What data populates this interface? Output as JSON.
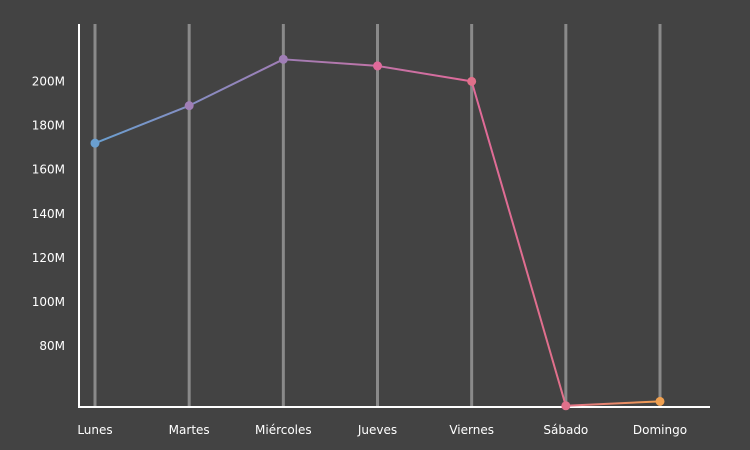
{
  "chart_data": {
    "type": "line",
    "categories": [
      "Lunes",
      "Martes",
      "Miércoles",
      "Jueves",
      "Viernes",
      "Sábado",
      "Domingo"
    ],
    "series": [
      {
        "values": [
          172,
          189,
          210,
          207,
          200,
          53,
          55
        ]
      }
    ],
    "y_ticks": [
      80,
      100,
      120,
      140,
      160,
      180,
      200
    ],
    "y_tick_labels": [
      "80M",
      "100M",
      "120M",
      "140M",
      "160M",
      "180M",
      "200M"
    ],
    "ylim": [
      52,
      226
    ],
    "grid": "vertical",
    "title": "",
    "xlabel": "",
    "ylabel": "",
    "colors": {
      "background": "#434343",
      "axis": "#ffffff",
      "grid": "#8a8a8a",
      "text": "#ffffff",
      "gradient": [
        "#6a9fd0",
        "#a07eb6",
        "#e06a9a",
        "#e0708a",
        "#f0a050"
      ]
    }
  }
}
